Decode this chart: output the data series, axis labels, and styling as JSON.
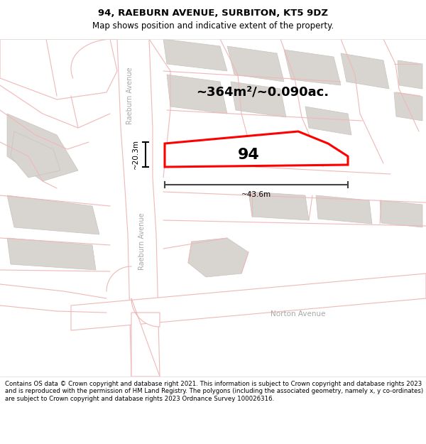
{
  "title": "94, RAEBURN AVENUE, SURBITON, KT5 9DZ",
  "subtitle": "Map shows position and indicative extent of the property.",
  "footer": "Contains OS data © Crown copyright and database right 2021. This information is subject to Crown copyright and database rights 2023 and is reproduced with the permission of HM Land Registry. The polygons (including the associated geometry, namely x, y co-ordinates) are subject to Crown copyright and database rights 2023 Ordnance Survey 100026316.",
  "area_text": "~364m²/~0.090ac.",
  "label_94": "94",
  "dim_width": "~43.6m",
  "dim_height": "~20.3m",
  "map_bg": "#f2eeea",
  "road_fill": "#ffffff",
  "pink": "#f0b8b8",
  "property_stroke": "#ff0000",
  "block_fill": "#d8d5d0",
  "block_stroke": "#c8c5c0",
  "raeburn_label": "Raeburn Avenue",
  "norton_label": "Norton Avenue",
  "title_fontsize": 9.5,
  "subtitle_fontsize": 8.5,
  "footer_fontsize": 6.2,
  "label_color": "#b0b0b0"
}
